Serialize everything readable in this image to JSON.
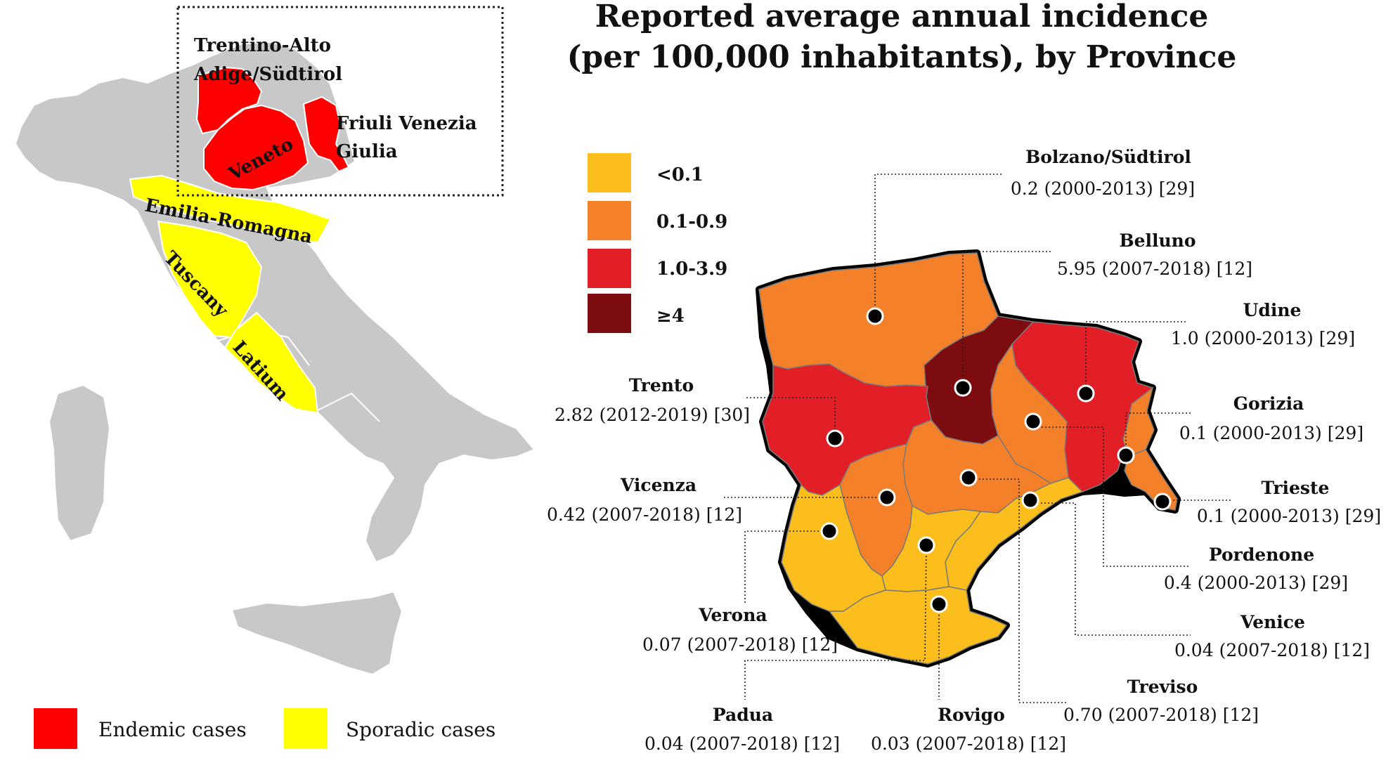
{
  "title": {
    "line1": "Reported average annual incidence",
    "line2": "(per 100,000 inhabitants), by Province"
  },
  "colors": {
    "lt01": "#fcbe1c",
    "r01_09": "#f5802a",
    "r10_39": "#e21f26",
    "ge4": "#7d0c10",
    "endemic": "#ff0000",
    "sporadic": "#ffff00",
    "land": "#c8c8c8"
  },
  "scale_legend": [
    {
      "label": "<0.1",
      "color": "#fcbe1c"
    },
    {
      "label": "0.1-0.9",
      "color": "#f5802a"
    },
    {
      "label": "1.0-3.9",
      "color": "#e21f26"
    },
    {
      "label": "≥4",
      "color": "#7d0c10"
    }
  ],
  "italy_map": {
    "regions": {
      "trentino": "Trentino-Alto",
      "trentino2": "Adige/Südtirol",
      "friuli": "Friuli Venezia",
      "friuli2": "Giulia",
      "veneto": "Veneto",
      "emilia": "Emilia-Romagna",
      "tuscany": "Tuscany",
      "latium": "Latium"
    },
    "legend": {
      "endemic": "Endemic cases",
      "sporadic": "Sporadic cases"
    }
  },
  "provinces": [
    {
      "key": "bolzano",
      "name": "Bolzano/Südtirol",
      "value": "0.2 (2000-2013) [29]"
    },
    {
      "key": "belluno",
      "name": "Belluno",
      "value": "5.95 (2007-2018) [12]"
    },
    {
      "key": "udine",
      "name": "Udine",
      "value": "1.0 (2000-2013) [29]"
    },
    {
      "key": "trento",
      "name": "Trento",
      "value": "2.82 (2012-2019) [30]"
    },
    {
      "key": "gorizia",
      "name": "Gorizia",
      "value": "0.1 (2000-2013) [29]"
    },
    {
      "key": "vicenza",
      "name": "Vicenza",
      "value": "0.42 (2007-2018) [12]"
    },
    {
      "key": "trieste",
      "name": "Trieste",
      "value": "0.1 (2000-2013) [29]"
    },
    {
      "key": "pordenone",
      "name": "Pordenone",
      "value": "0.4 (2000-2013) [29]"
    },
    {
      "key": "verona",
      "name": "Verona",
      "value": "0.07 (2007-2018) [12]"
    },
    {
      "key": "venice",
      "name": "Venice",
      "value": "0.04 (2007-2018) [12]"
    },
    {
      "key": "treviso",
      "name": "Treviso",
      "value": "0.70 (2007-2018) [12]"
    },
    {
      "key": "padua",
      "name": "Padua",
      "value": "0.04 (2007-2018) [12]"
    },
    {
      "key": "rovigo",
      "name": "Rovigo",
      "value": "0.03 (2007-2018) [12]"
    }
  ]
}
